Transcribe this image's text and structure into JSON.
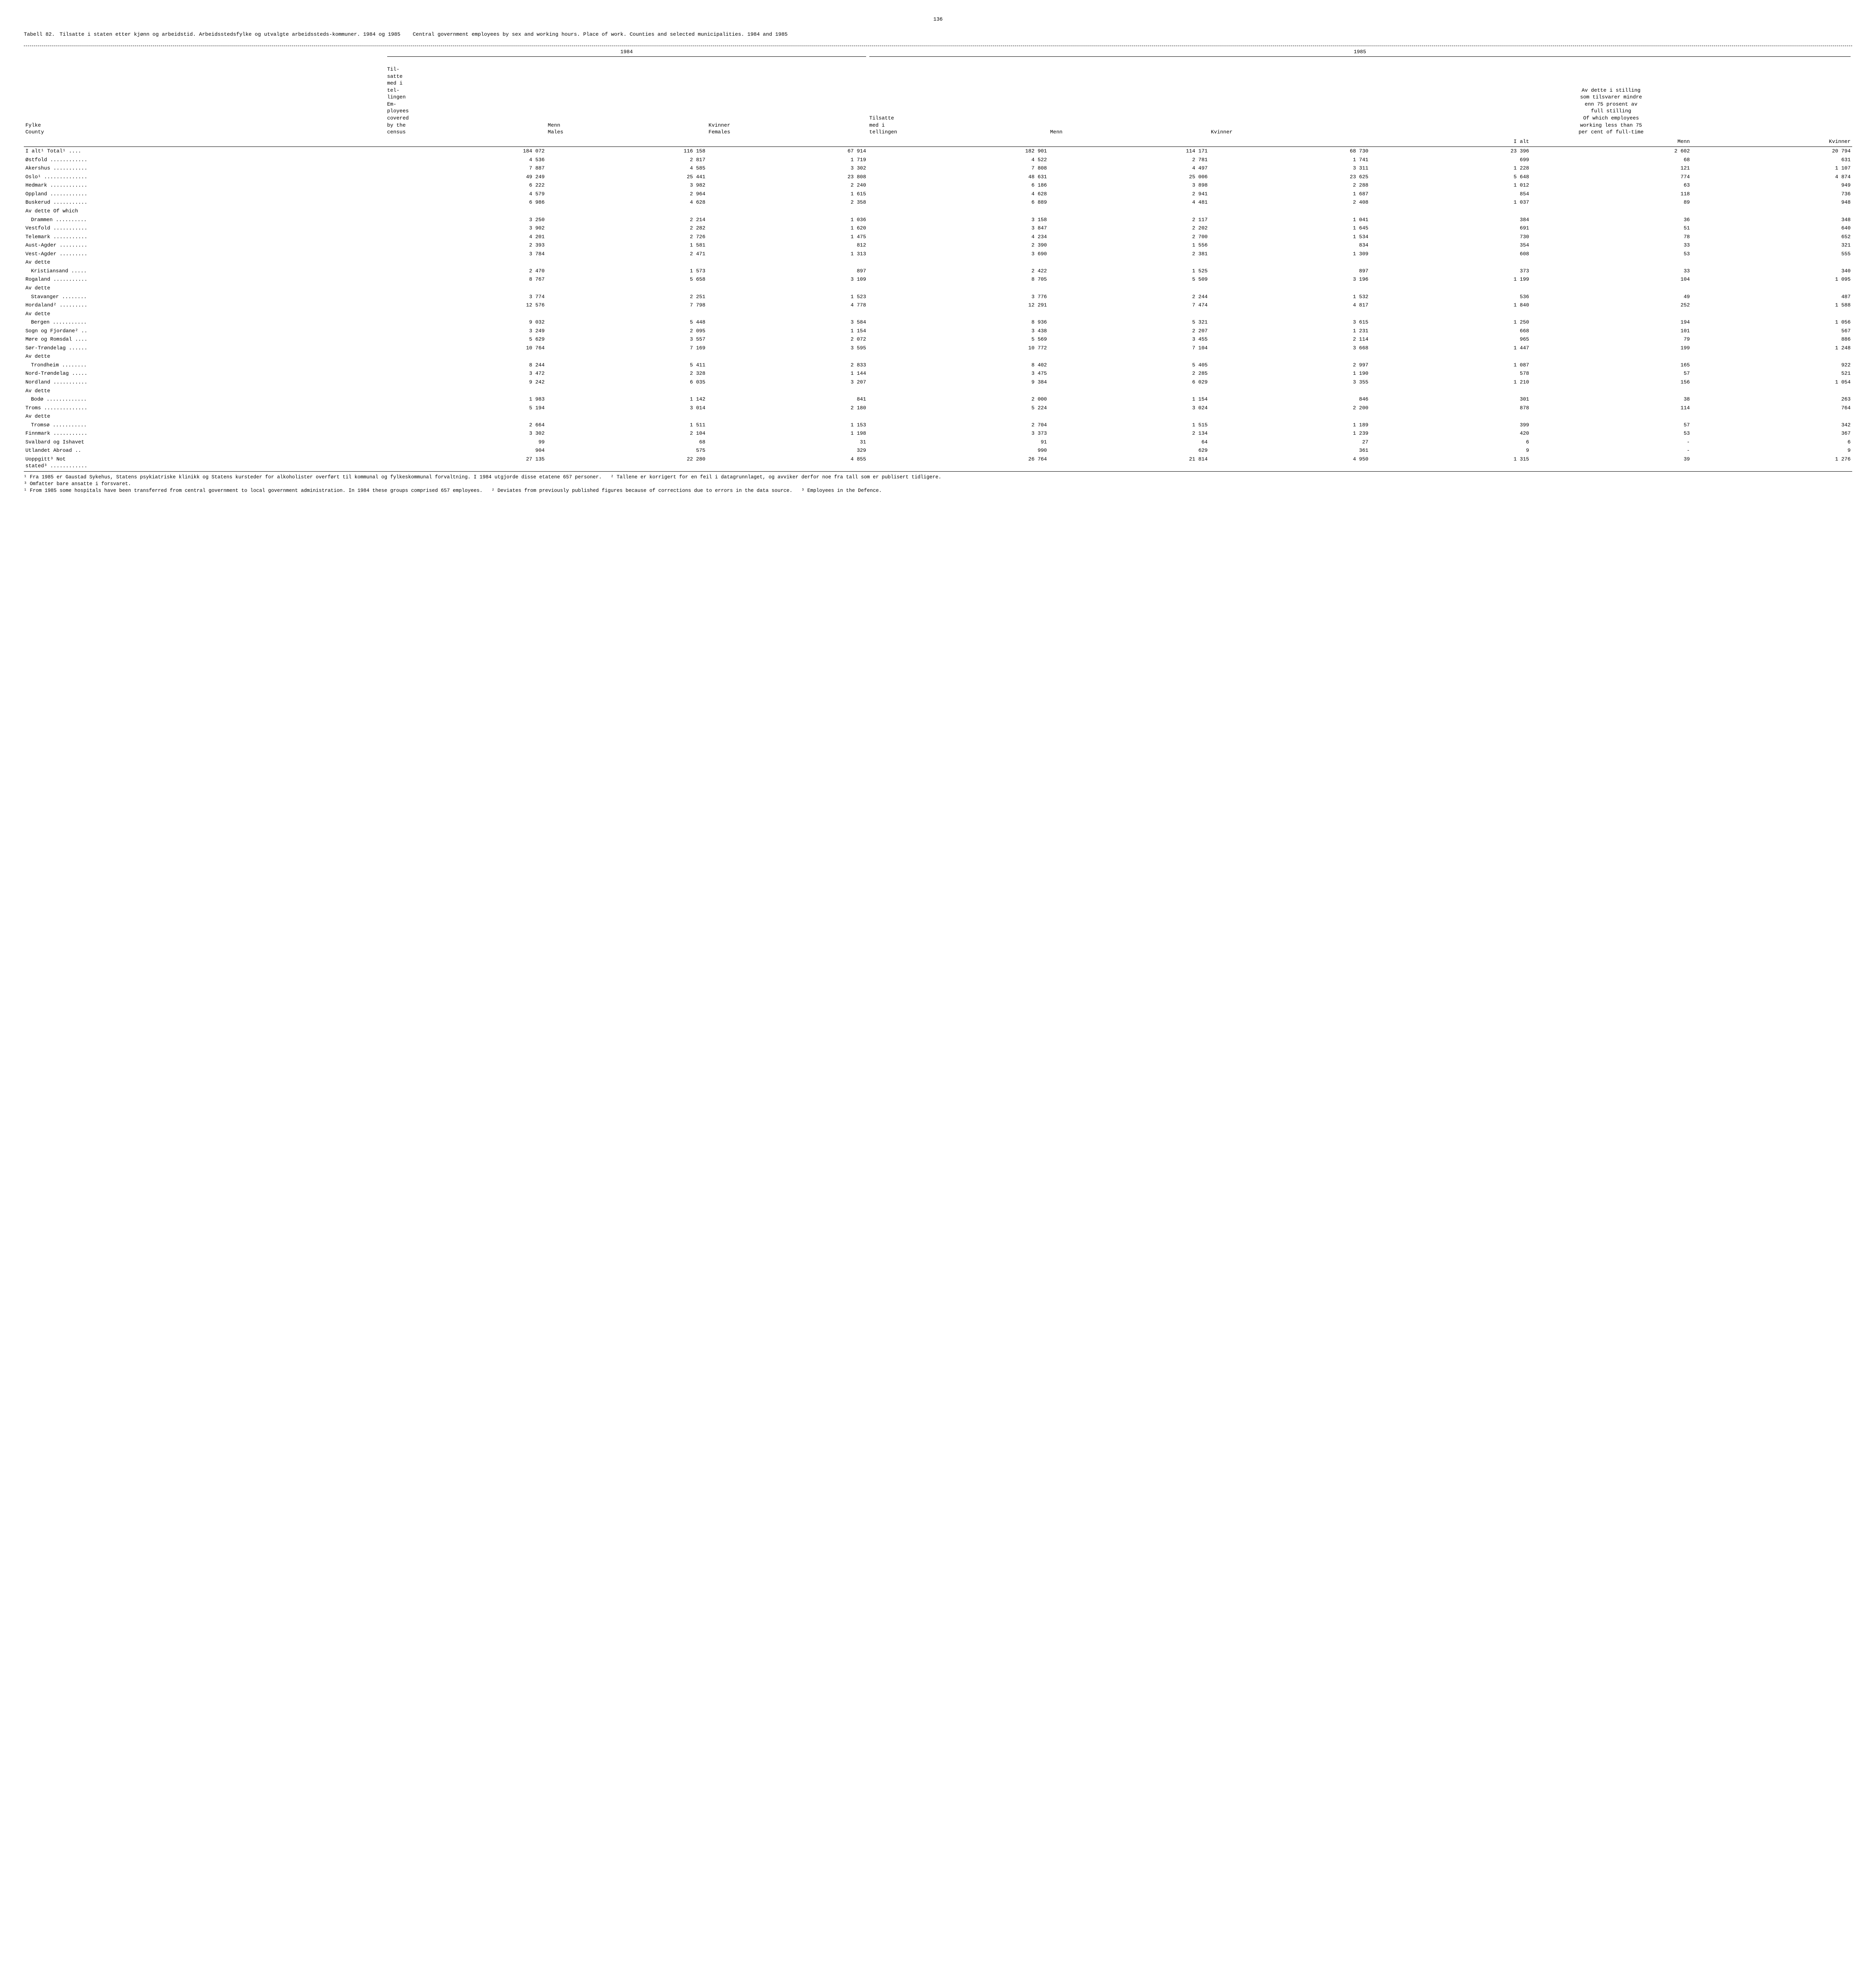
{
  "page_number": "136",
  "table_label": "Tabell 82.",
  "title_no": "Tilsatte i staten etter kjønn og arbeidstid.  Arbeidsstedsfylke og utvalgte arbeidssteds-kommuner.  1984 og 1985",
  "title_en": "Central government employees by sex and working hours.  Place of work.  Counties and selected municipalities.  1984 and 1985",
  "col_county_no": "Fylke",
  "col_county_en": "County",
  "year_1984": "1984",
  "year_1985": "1985",
  "col_census_no": "Til-\nsatte\nmed i\ntel-\nlingen",
  "col_census_en": "Em-\nployees\ncovered\nby the\ncensus",
  "col_menn": "Menn",
  "col_males": "Males",
  "col_kvinner": "Kvinner",
  "col_females": "Females",
  "col_tilsatte85": "Tilsatte\nmed i\ntellingen",
  "col_menn85": "Menn",
  "col_kvinner85": "Kvinner",
  "col_parttime_no": "Av dette i stilling\nsom tilsvarer mindre\nenn 75 prosent av\nfull stilling",
  "col_parttime_en": "Of which employees\nworking less than 75\nper cent of full-time",
  "col_ialt": "I alt",
  "col_menn_s": "Menn",
  "col_kvinner_s": "Kvinner",
  "of_which": "Av dette   Of which",
  "av_dette": "Av dette",
  "rows": [
    {
      "lbl": "I alt¹   Total¹ ....",
      "c": [
        "184 072",
        "116 158",
        "67 914",
        "182 901",
        "114 171",
        "68 730",
        "23 396",
        "2 602",
        "20 794"
      ]
    },
    {
      "lbl": "Østfold ............",
      "c": [
        "4 536",
        "2 817",
        "1 719",
        "4 522",
        "2 781",
        "1 741",
        "699",
        "68",
        "631"
      ]
    },
    {
      "lbl": "Akershus ...........",
      "c": [
        "7 887",
        "4 585",
        "3 302",
        "7 808",
        "4 497",
        "3 311",
        "1 228",
        "121",
        "1 107"
      ]
    },
    {
      "lbl": "Oslo¹ ..............",
      "c": [
        "49 249",
        "25 441",
        "23 808",
        "48 631",
        "25 006",
        "23 625",
        "5 648",
        "774",
        "4 874"
      ]
    },
    {
      "lbl": "Hedmark ............",
      "c": [
        "6 222",
        "3 982",
        "2 240",
        "6 186",
        "3 898",
        "2 288",
        "1 012",
        "63",
        "949"
      ]
    },
    {
      "lbl": "Oppland ............",
      "c": [
        "4 579",
        "2 964",
        "1 615",
        "4 628",
        "2 941",
        "1 687",
        "854",
        "118",
        "736"
      ]
    },
    {
      "lbl": "Buskerud ...........",
      "c": [
        "6 986",
        "4 628",
        "2 358",
        "6 889",
        "4 481",
        "2 408",
        "1 037",
        "89",
        "948"
      ]
    },
    {
      "lbl": "Av dette   Of which",
      "hdr": true
    },
    {
      "lbl": "Drammen ..........",
      "ind": true,
      "c": [
        "3 250",
        "2 214",
        "1 036",
        "3 158",
        "2 117",
        "1 041",
        "384",
        "36",
        "348"
      ]
    },
    {
      "lbl": "Vestfold ...........",
      "c": [
        "3 902",
        "2 282",
        "1 620",
        "3 847",
        "2 202",
        "1 645",
        "691",
        "51",
        "640"
      ]
    },
    {
      "lbl": "Telemark ...........",
      "c": [
        "4 201",
        "2 726",
        "1 475",
        "4 234",
        "2 700",
        "1 534",
        "730",
        "78",
        "652"
      ]
    },
    {
      "lbl": "Aust-Agder .........",
      "c": [
        "2 393",
        "1 581",
        "812",
        "2 390",
        "1 556",
        "834",
        "354",
        "33",
        "321"
      ]
    },
    {
      "lbl": "Vest-Agder .........",
      "c": [
        "3 784",
        "2 471",
        "1 313",
        "3 690",
        "2 381",
        "1 309",
        "608",
        "53",
        "555"
      ]
    },
    {
      "lbl": "Av dette",
      "hdr": true
    },
    {
      "lbl": "Kristiansand .....",
      "ind": true,
      "c": [
        "2 470",
        "1 573",
        "897",
        "2 422",
        "1 525",
        "897",
        "373",
        "33",
        "340"
      ]
    },
    {
      "lbl": "Rogaland ...........",
      "c": [
        "8 767",
        "5 658",
        "3 109",
        "8 705",
        "5 509",
        "3 196",
        "1 199",
        "104",
        "1 095"
      ]
    },
    {
      "lbl": "Av dette",
      "hdr": true
    },
    {
      "lbl": "Stavanger ........",
      "ind": true,
      "c": [
        "3 774",
        "2 251",
        "1 523",
        "3 776",
        "2 244",
        "1 532",
        "536",
        "49",
        "487"
      ]
    },
    {
      "lbl": "Hordaland² .........",
      "c": [
        "12 576",
        "7 798",
        "4 778",
        "12 291",
        "7 474",
        "4 817",
        "1 840",
        "252",
        "1 588"
      ]
    },
    {
      "lbl": "Av dette",
      "hdr": true
    },
    {
      "lbl": "Bergen ...........",
      "ind": true,
      "c": [
        "9 032",
        "5 448",
        "3 584",
        "8 936",
        "5 321",
        "3 615",
        "1 250",
        "194",
        "1 056"
      ]
    },
    {
      "lbl": "Sogn og Fjordane² ..",
      "c": [
        "3 249",
        "2 095",
        "1 154",
        "3 438",
        "2 207",
        "1 231",
        "668",
        "101",
        "567"
      ]
    },
    {
      "lbl": "Møre og Romsdal ....",
      "c": [
        "5 629",
        "3 557",
        "2 072",
        "5 569",
        "3 455",
        "2 114",
        "965",
        "79",
        "886"
      ]
    },
    {
      "lbl": "Sør-Trøndelag ......",
      "c": [
        "10 764",
        "7 169",
        "3 595",
        "10 772",
        "7 104",
        "3 668",
        "1 447",
        "199",
        "1 248"
      ]
    },
    {
      "lbl": "Av dette",
      "hdr": true
    },
    {
      "lbl": "Trondheim ........",
      "ind": true,
      "c": [
        "8 244",
        "5 411",
        "2 833",
        "8 402",
        "5 405",
        "2 997",
        "1 087",
        "165",
        "922"
      ]
    },
    {
      "lbl": "Nord-Trøndelag .....",
      "c": [
        "3 472",
        "2 328",
        "1 144",
        "3 475",
        "2 285",
        "1 190",
        "578",
        "57",
        "521"
      ]
    },
    {
      "lbl": "Nordland ...........",
      "c": [
        "9 242",
        "6 035",
        "3 207",
        "9 384",
        "6 029",
        "3 355",
        "1 210",
        "156",
        "1 054"
      ]
    },
    {
      "lbl": "Av dette",
      "hdr": true
    },
    {
      "lbl": "Bodø .............",
      "ind": true,
      "c": [
        "1 983",
        "1 142",
        "841",
        "2 000",
        "1 154",
        "846",
        "301",
        "38",
        "263"
      ]
    },
    {
      "lbl": "Troms ..............",
      "c": [
        "5 194",
        "3 014",
        "2 180",
        "5 224",
        "3 024",
        "2 200",
        "878",
        "114",
        "764"
      ]
    },
    {
      "lbl": "Av dette",
      "hdr": true
    },
    {
      "lbl": "Tromsø ...........",
      "ind": true,
      "c": [
        "2 664",
        "1 511",
        "1 153",
        "2 704",
        "1 515",
        "1 189",
        "399",
        "57",
        "342"
      ]
    },
    {
      "lbl": "Finnmark ...........",
      "c": [
        "3 302",
        "2 104",
        "1 198",
        "3 373",
        "2 134",
        "1 239",
        "420",
        "53",
        "367"
      ]
    },
    {
      "lbl": "Svalbard og Ishavet",
      "c": [
        "99",
        "68",
        "31",
        "91",
        "64",
        "27",
        "6",
        "-",
        "6"
      ]
    },
    {
      "lbl": "Utlandet   Abroad ..",
      "c": [
        "904",
        "575",
        "329",
        "990",
        "629",
        "361",
        "9",
        "-",
        "9"
      ]
    },
    {
      "lbl": "Uoppgitt³   Not\nstated³ ............",
      "c": [
        "27 135",
        "22 280",
        "4 855",
        "26 764",
        "21 814",
        "4 950",
        "1 315",
        "39",
        "1 276"
      ]
    }
  ],
  "footnote1_no": "¹ Fra 1985 er Gaustad Sykehus, Statens psykiatriske klinikk og Statens kursteder for alkoholister overført til kommunal og fylkeskommunal forvaltning.  I 1984 utgjorde disse etatene 657 personer.",
  "footnote2_no": "² Tallene er korrigert for en feil i datagrunnlaget, og avviker derfor noe fra tall som er publisert tidligere.",
  "footnote3_no": "³ Omfatter bare ansatte i forsvaret.",
  "footnote1_en": "¹ From 1985 some hospitals have been transferred from central government to local government administration.  In 1984 these groups comprised 657 employees.",
  "footnote2_en": "² Deviates from previously published figures because of corrections due to errors in the data source.",
  "footnote3_en": "³ Employees in the Defence."
}
